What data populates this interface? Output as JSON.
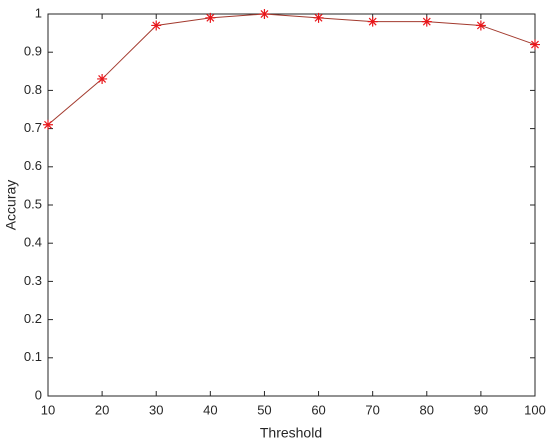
{
  "chart_data": {
    "type": "line",
    "x": [
      10,
      20,
      30,
      40,
      50,
      60,
      70,
      80,
      90,
      100
    ],
    "series": [
      {
        "color": "#a33a2e",
        "marker_color": "#e8171b",
        "marker": "asterisk",
        "values": [
          0.71,
          0.83,
          0.97,
          0.99,
          1.0,
          0.99,
          0.98,
          0.98,
          0.97,
          0.92
        ]
      }
    ],
    "xlabel": "Threshold",
    "ylabel": "Accuray",
    "xlim": [
      10,
      100
    ],
    "xticks": [
      10,
      20,
      30,
      40,
      50,
      60,
      70,
      80,
      90,
      100
    ],
    "ylim": [
      0,
      1
    ],
    "yticks": [
      0,
      0.1,
      0.2,
      0.3,
      0.4,
      0.5,
      0.6,
      0.7,
      0.8,
      0.9,
      1
    ],
    "grid": false,
    "box": true
  }
}
